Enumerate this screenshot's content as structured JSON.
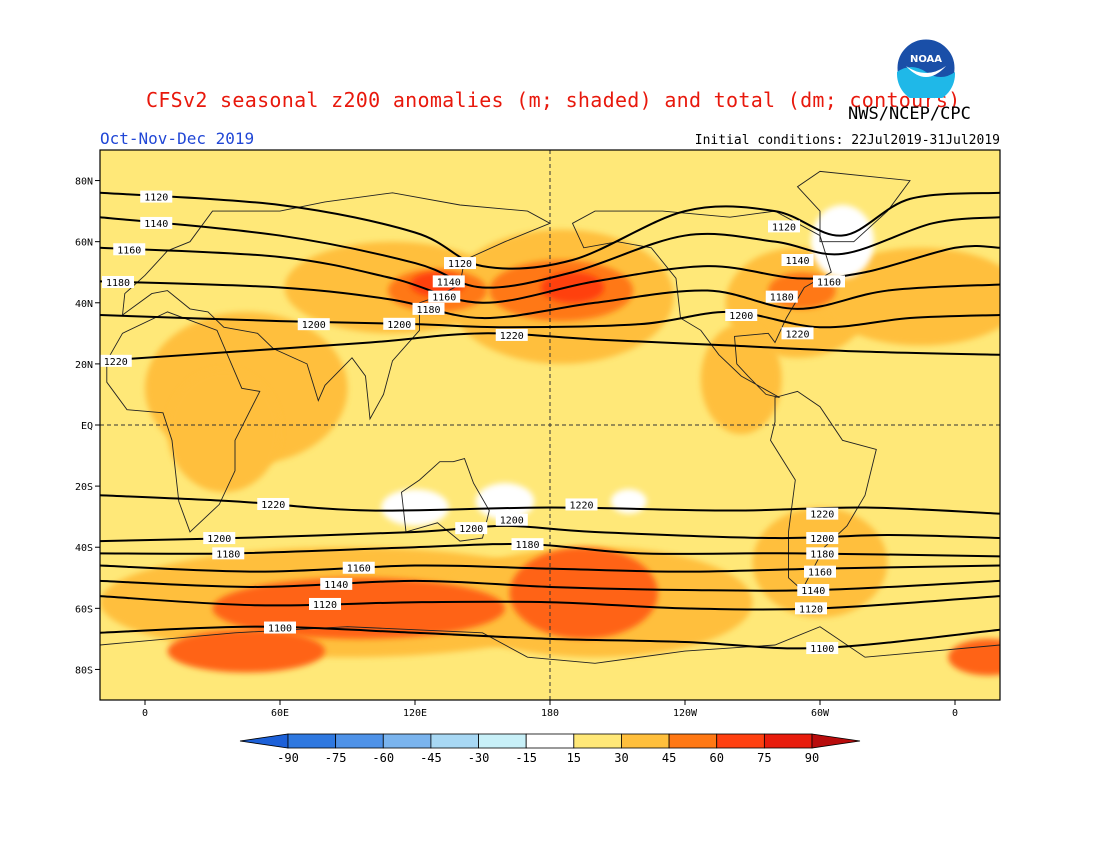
{
  "header": {
    "title": "CFSv2 seasonal z200 anomalies (m; shaded) and total (dm; contours)",
    "agency": "NWS/NCEP/CPC",
    "season": "Oct-Nov-Dec 2019",
    "initial_conditions": "Initial conditions: 22Jul2019-31Jul2019",
    "logo_text": "NOAA"
  },
  "map": {
    "projection": "cylindrical-equidistant",
    "lon_range": [
      -20,
      380
    ],
    "lat_range": [
      -90,
      90
    ],
    "lat_ticks": [
      {
        "lat": 80,
        "label": "80N"
      },
      {
        "lat": 60,
        "label": "60N"
      },
      {
        "lat": 40,
        "label": "40N"
      },
      {
        "lat": 20,
        "label": "20N"
      },
      {
        "lat": 0,
        "label": "EQ"
      },
      {
        "lat": -20,
        "label": "20S"
      },
      {
        "lat": -40,
        "label": "40S"
      },
      {
        "lat": -60,
        "label": "60S"
      },
      {
        "lat": -80,
        "label": "80S"
      }
    ],
    "lon_ticks": [
      {
        "lon": 0,
        "label": "0"
      },
      {
        "lon": 60,
        "label": "60E"
      },
      {
        "lon": 120,
        "label": "120E"
      },
      {
        "lon": 180,
        "label": "180"
      },
      {
        "lon": 240,
        "label": "120W"
      },
      {
        "lon": 300,
        "label": "60W"
      },
      {
        "lon": 360,
        "label": "0"
      }
    ],
    "background_color": "#ffe878",
    "anomaly_regions": [
      {
        "lon": 110,
        "lat": 45,
        "rx": 48,
        "ry": 15,
        "color": "#ffbf3c"
      },
      {
        "lon": 185,
        "lat": 42,
        "rx": 50,
        "ry": 22,
        "color": "#ffbf3c"
      },
      {
        "lon": 290,
        "lat": 40,
        "rx": 32,
        "ry": 18,
        "color": "#ffbf3c"
      },
      {
        "lon": 345,
        "lat": 42,
        "rx": 45,
        "ry": 16,
        "color": "#ffbf3c"
      },
      {
        "lon": 45,
        "lat": 12,
        "rx": 45,
        "ry": 25,
        "color": "#ffbf3c"
      },
      {
        "lon": 35,
        "lat": -2,
        "rx": 25,
        "ry": 20,
        "color": "#ffbf3c"
      },
      {
        "lon": 90,
        "lat": -58,
        "rx": 110,
        "ry": 18,
        "color": "#ffbf3c"
      },
      {
        "lon": 200,
        "lat": -58,
        "rx": 70,
        "ry": 18,
        "color": "#ffbf3c"
      },
      {
        "lon": 300,
        "lat": -45,
        "rx": 30,
        "ry": 18,
        "color": "#ffbf3c"
      },
      {
        "lon": 265,
        "lat": 15,
        "rx": 18,
        "ry": 18,
        "color": "#ffbf3c"
      },
      {
        "lon": 130,
        "lat": 44,
        "rx": 22,
        "ry": 7,
        "color": "#ff7814"
      },
      {
        "lon": 185,
        "lat": 44,
        "rx": 32,
        "ry": 10,
        "color": "#ff7814"
      },
      {
        "lon": 292,
        "lat": 44,
        "rx": 15,
        "ry": 6,
        "color": "#ff7814"
      },
      {
        "lon": 195,
        "lat": -55,
        "rx": 33,
        "ry": 15,
        "color": "#ff6414"
      },
      {
        "lon": 95,
        "lat": -60,
        "rx": 65,
        "ry": 10,
        "color": "#ff6414"
      },
      {
        "lon": 45,
        "lat": -74,
        "rx": 35,
        "ry": 7,
        "color": "#ff6414"
      },
      {
        "lon": 375,
        "lat": -76,
        "rx": 18,
        "ry": 6,
        "color": "#ff6414"
      },
      {
        "lon": 130,
        "lat": 46,
        "rx": 12,
        "ry": 4,
        "color": "#ff4010"
      },
      {
        "lon": 190,
        "lat": 45,
        "rx": 14,
        "ry": 5,
        "color": "#ff4010"
      },
      {
        "lon": 120,
        "lat": -27,
        "rx": 15,
        "ry": 6,
        "color": "#ffffff"
      },
      {
        "lon": 160,
        "lat": -25,
        "rx": 13,
        "ry": 6,
        "color": "#ffffff"
      },
      {
        "lon": 215,
        "lat": -25,
        "rx": 8,
        "ry": 4,
        "color": "#ffffff"
      },
      {
        "lon": 310,
        "lat": 60,
        "rx": 14,
        "ry": 12,
        "color": "#ffffff"
      }
    ],
    "contours": [
      {
        "label": "1120",
        "points": [
          [
            -20,
            76
          ],
          [
            60,
            72
          ],
          [
            120,
            63
          ],
          [
            150,
            52
          ],
          [
            190,
            54
          ],
          [
            240,
            70
          ],
          [
            280,
            70
          ],
          [
            310,
            62
          ],
          [
            340,
            74
          ],
          [
            380,
            76
          ]
        ],
        "label_lon": 5
      },
      {
        "label": "1140",
        "points": [
          [
            -20,
            68
          ],
          [
            60,
            62
          ],
          [
            120,
            53
          ],
          [
            150,
            45
          ],
          [
            190,
            50
          ],
          [
            240,
            62
          ],
          [
            280,
            60
          ],
          [
            310,
            56
          ],
          [
            350,
            66
          ],
          [
            380,
            68
          ]
        ],
        "label_lon": 5
      },
      {
        "label": "1160",
        "points": [
          [
            -20,
            58
          ],
          [
            60,
            55
          ],
          [
            110,
            48
          ],
          [
            150,
            40
          ],
          [
            200,
            47
          ],
          [
            250,
            52
          ],
          [
            290,
            48
          ],
          [
            320,
            50
          ],
          [
            360,
            58
          ],
          [
            380,
            58
          ]
        ],
        "label_lon": -7
      },
      {
        "label": "1180",
        "points": [
          [
            -20,
            47
          ],
          [
            60,
            45
          ],
          [
            110,
            41
          ],
          [
            150,
            35
          ],
          [
            200,
            40
          ],
          [
            250,
            44
          ],
          [
            290,
            38
          ],
          [
            330,
            44
          ],
          [
            380,
            46
          ]
        ],
        "label_lon": -12
      },
      {
        "label": "1200",
        "points": [
          [
            -20,
            36
          ],
          [
            60,
            34
          ],
          [
            120,
            33
          ],
          [
            160,
            32
          ],
          [
            220,
            33
          ],
          [
            260,
            37
          ],
          [
            300,
            32
          ],
          [
            340,
            35
          ],
          [
            380,
            36
          ]
        ],
        "label_lon": 113
      },
      {
        "label": "1220",
        "points": [
          [
            -20,
            21
          ],
          [
            40,
            24
          ],
          [
            100,
            27
          ],
          [
            150,
            30
          ],
          [
            200,
            28
          ],
          [
            260,
            26
          ],
          [
            320,
            24
          ],
          [
            380,
            23
          ]
        ],
        "label_lon": 163
      },
      {
        "label": "1220",
        "points": [
          [
            -20,
            -23
          ],
          [
            40,
            -25
          ],
          [
            100,
            -28
          ],
          [
            180,
            -27
          ],
          [
            260,
            -28
          ],
          [
            320,
            -27
          ],
          [
            380,
            -29
          ]
        ],
        "label_lon": 57
      },
      {
        "label": "1200",
        "points": [
          [
            -20,
            -38
          ],
          [
            40,
            -37
          ],
          [
            120,
            -35
          ],
          [
            160,
            -33
          ],
          [
            200,
            -35
          ],
          [
            280,
            -37
          ],
          [
            330,
            -36
          ],
          [
            380,
            -37
          ]
        ],
        "label_lon": 145
      },
      {
        "label": "1180",
        "points": [
          [
            -20,
            -42
          ],
          [
            40,
            -42
          ],
          [
            120,
            -40
          ],
          [
            170,
            -39
          ],
          [
            220,
            -42
          ],
          [
            290,
            -42
          ],
          [
            380,
            -43
          ]
        ],
        "label_lon": 170
      },
      {
        "label": "1160",
        "points": [
          [
            -20,
            -46
          ],
          [
            50,
            -48
          ],
          [
            120,
            -46
          ],
          [
            180,
            -47
          ],
          [
            240,
            -48
          ],
          [
            300,
            -47
          ],
          [
            380,
            -46
          ]
        ],
        "label_lon": 95
      },
      {
        "label": "1140",
        "points": [
          [
            -20,
            -51
          ],
          [
            50,
            -53
          ],
          [
            120,
            -51
          ],
          [
            180,
            -53
          ],
          [
            240,
            -54
          ],
          [
            300,
            -54
          ],
          [
            380,
            -51
          ]
        ],
        "label_lon": 85
      },
      {
        "label": "1120",
        "points": [
          [
            -20,
            -56
          ],
          [
            50,
            -59
          ],
          [
            120,
            -58
          ],
          [
            180,
            -58
          ],
          [
            240,
            -60
          ],
          [
            300,
            -60
          ],
          [
            380,
            -56
          ]
        ],
        "label_lon": 80
      },
      {
        "label": "1100",
        "points": [
          [
            -20,
            -68
          ],
          [
            50,
            -66
          ],
          [
            120,
            -68
          ],
          [
            180,
            -70
          ],
          [
            240,
            -71
          ],
          [
            300,
            -73
          ],
          [
            380,
            -67
          ]
        ],
        "label_lon": 60
      }
    ],
    "contour_labels_extra": [
      {
        "label": "1120",
        "lon": 140,
        "lat": 53
      },
      {
        "label": "1140",
        "lon": 135,
        "lat": 47
      },
      {
        "label": "1160",
        "lon": 133,
        "lat": 42
      },
      {
        "label": "1180",
        "lon": 126,
        "lat": 38
      },
      {
        "label": "1200",
        "lon": 75,
        "lat": 33
      },
      {
        "label": "1220",
        "lon": -13,
        "lat": 21
      },
      {
        "label": "1120",
        "lon": 284,
        "lat": 65
      },
      {
        "label": "1140",
        "lon": 290,
        "lat": 54
      },
      {
        "label": "1160",
        "lon": 304,
        "lat": 47
      },
      {
        "label": "1180",
        "lon": 283,
        "lat": 42
      },
      {
        "label": "1200",
        "lon": 265,
        "lat": 36
      },
      {
        "label": "1220",
        "lon": 290,
        "lat": 30
      },
      {
        "label": "1220",
        "lon": 194,
        "lat": -26
      },
      {
        "label": "1200",
        "lon": 163,
        "lat": -31
      },
      {
        "label": "1180",
        "lon": 37,
        "lat": -42
      },
      {
        "label": "1200",
        "lon": 33,
        "lat": -37
      },
      {
        "label": "1220",
        "lon": 301,
        "lat": -29
      },
      {
        "label": "1200",
        "lon": 301,
        "lat": -37
      },
      {
        "label": "1180",
        "lon": 301,
        "lat": -42
      },
      {
        "label": "1160",
        "lon": 300,
        "lat": -48
      },
      {
        "label": "1140",
        "lon": 297,
        "lat": -54
      },
      {
        "label": "1120",
        "lon": 296,
        "lat": -60
      },
      {
        "label": "1100",
        "lon": 301,
        "lat": -73
      }
    ]
  },
  "colorbar": {
    "labels": [
      "-90",
      "-75",
      "-60",
      "-45",
      "-30",
      "-15",
      "15",
      "30",
      "45",
      "60",
      "75",
      "90"
    ],
    "colors": [
      "#1c60d8",
      "#2e78e0",
      "#4e92e8",
      "#7ab4ee",
      "#a8d8f4",
      "#c8f0f8",
      "#ffffff",
      "#ffe878",
      "#ffbf3c",
      "#ff7814",
      "#ff4010",
      "#e81c0c",
      "#b80c0c"
    ]
  }
}
